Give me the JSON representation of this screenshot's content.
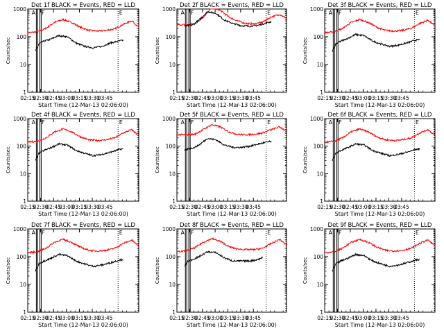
{
  "colors": {
    "background": "#ffffff",
    "axis": "#000000",
    "events": "#000000",
    "lld": "#ff0000"
  },
  "shared": {
    "xlabel": "Start Time (12-Mar-13 02:06:00)",
    "ylabel": "Counts/sec",
    "x_ticks": [
      "02:15",
      "02:30",
      "02:45",
      "03:00",
      "03:15",
      "03:30",
      "03:45"
    ],
    "y_ticks": [
      "1",
      "10",
      "100",
      "1000"
    ],
    "markers": [
      "A",
      "F",
      "E"
    ]
  },
  "chart_data": [
    {
      "type": "line",
      "title": "Det 1f BLACK = Events, RED = LLD",
      "xlabel": "Start Time (12-Mar-13 02:06:00)",
      "ylabel": "Counts/sec",
      "y_scale": "log",
      "ylim": [
        1,
        1000
      ],
      "xlim_minutes": [
        9,
        138
      ],
      "series": [
        {
          "name": "Events",
          "color": "#000000",
          "x": [
            18,
            22,
            28,
            35,
            45,
            55,
            65,
            75,
            85,
            95,
            105,
            115,
            120
          ],
          "y": [
            30,
            55,
            70,
            80,
            110,
            100,
            60,
            45,
            40,
            45,
            60,
            70,
            75
          ]
        },
        {
          "name": "LLD",
          "color": "#ff0000",
          "x": [
            9,
            20,
            30,
            40,
            50,
            60,
            70,
            80,
            90,
            100,
            110,
            120,
            130,
            138
          ],
          "y": [
            140,
            150,
            200,
            330,
            420,
            330,
            220,
            170,
            160,
            170,
            190,
            280,
            380,
            220
          ]
        }
      ]
    },
    {
      "type": "line",
      "title": "Det 2f BLACK = Events, RED = LLD",
      "xlabel": "Start Time (12-Mar-13 02:06:00)",
      "ylabel": "Counts/sec",
      "y_scale": "log",
      "ylim": [
        1,
        1000
      ],
      "xlim_minutes": [
        9,
        138
      ],
      "series": [
        {
          "name": "Events",
          "color": "#000000",
          "x": [
            18,
            22,
            28,
            35,
            45,
            55,
            65,
            75,
            85,
            95,
            105,
            115,
            120
          ],
          "y": [
            240,
            250,
            270,
            400,
            800,
            700,
            400,
            300,
            250,
            240,
            260,
            320,
            350
          ]
        },
        {
          "name": "LLD",
          "color": "#ff0000",
          "x": [
            9,
            20,
            30,
            40,
            50,
            60,
            70,
            80,
            90,
            100,
            110,
            120,
            130,
            138
          ],
          "y": [
            270,
            270,
            300,
            500,
            1100,
            900,
            520,
            380,
            300,
            290,
            340,
            520,
            640,
            460
          ]
        }
      ]
    },
    {
      "type": "line",
      "title": "Det 3f BLACK = Events, RED = LLD",
      "xlabel": "Start Time (12-Mar-13 02:06:00)",
      "ylabel": "Counts/sec",
      "y_scale": "log",
      "ylim": [
        1,
        1000
      ],
      "xlim_minutes": [
        9,
        138
      ],
      "series": [
        {
          "name": "Events",
          "color": "#000000",
          "x": [
            18,
            22,
            28,
            35,
            45,
            55,
            65,
            75,
            85,
            95,
            105,
            115,
            120
          ],
          "y": [
            30,
            55,
            70,
            85,
            120,
            110,
            70,
            55,
            45,
            50,
            60,
            75,
            80
          ]
        },
        {
          "name": "LLD",
          "color": "#ff0000",
          "x": [
            9,
            20,
            30,
            40,
            50,
            60,
            70,
            80,
            90,
            100,
            110,
            120,
            130,
            138
          ],
          "y": [
            140,
            150,
            200,
            330,
            420,
            330,
            220,
            170,
            160,
            170,
            200,
            300,
            400,
            240
          ]
        }
      ]
    },
    {
      "type": "line",
      "title": "Det 4f BLACK = Events, RED = LLD",
      "xlabel": "Start Time (12-Mar-13 02:06:00)",
      "ylabel": "Counts/sec",
      "y_scale": "log",
      "ylim": [
        1,
        1000
      ],
      "xlim_minutes": [
        9,
        138
      ],
      "series": [
        {
          "name": "Events",
          "color": "#000000",
          "x": [
            18,
            22,
            28,
            35,
            45,
            55,
            65,
            75,
            85,
            95,
            105,
            115,
            120
          ],
          "y": [
            30,
            55,
            70,
            85,
            120,
            110,
            70,
            55,
            45,
            50,
            60,
            75,
            80
          ]
        },
        {
          "name": "LLD",
          "color": "#ff0000",
          "x": [
            9,
            20,
            30,
            40,
            50,
            60,
            70,
            80,
            90,
            100,
            110,
            120,
            130,
            138
          ],
          "y": [
            140,
            150,
            200,
            330,
            420,
            330,
            220,
            170,
            160,
            170,
            200,
            300,
            400,
            240
          ]
        }
      ]
    },
    {
      "type": "line",
      "title": "Det 5f BLACK = Events, RED = LLD",
      "xlabel": "Start Time (12-Mar-13 02:06:00)",
      "ylabel": "Counts/sec",
      "y_scale": "log",
      "ylim": [
        1,
        1000
      ],
      "xlim_minutes": [
        9,
        138
      ],
      "series": [
        {
          "name": "Events",
          "color": "#000000",
          "x": [
            18,
            22,
            28,
            35,
            45,
            55,
            65,
            75,
            85,
            95,
            105,
            115,
            120
          ],
          "y": [
            70,
            80,
            85,
            110,
            190,
            170,
            110,
            90,
            90,
            100,
            120,
            140,
            150
          ]
        },
        {
          "name": "LLD",
          "color": "#ff0000",
          "x": [
            9,
            20,
            30,
            40,
            50,
            60,
            70,
            80,
            90,
            100,
            110,
            120,
            130,
            138
          ],
          "y": [
            260,
            260,
            270,
            400,
            600,
            500,
            330,
            270,
            260,
            270,
            300,
            400,
            500,
            350
          ]
        }
      ]
    },
    {
      "type": "line",
      "title": "Det 6f BLACK = Events, RED = LLD",
      "xlabel": "Start Time (12-Mar-13 02:06:00)",
      "ylabel": "Counts/sec",
      "y_scale": "log",
      "ylim": [
        1,
        1000
      ],
      "xlim_minutes": [
        9,
        138
      ],
      "series": [
        {
          "name": "Events",
          "color": "#000000",
          "x": [
            18,
            22,
            28,
            35,
            45,
            55,
            65,
            75,
            85,
            95,
            105,
            115,
            120
          ],
          "y": [
            30,
            55,
            70,
            85,
            120,
            110,
            70,
            55,
            45,
            50,
            60,
            75,
            80
          ]
        },
        {
          "name": "LLD",
          "color": "#ff0000",
          "x": [
            9,
            20,
            30,
            40,
            50,
            60,
            70,
            80,
            90,
            100,
            110,
            120,
            130,
            138
          ],
          "y": [
            140,
            150,
            200,
            330,
            420,
            330,
            220,
            170,
            160,
            170,
            200,
            300,
            400,
            240
          ]
        }
      ]
    },
    {
      "type": "line",
      "title": "Det 7f BLACK = Events, RED = LLD",
      "xlabel": "Start Time (12-Mar-13 02:06:00)",
      "ylabel": "Counts/sec",
      "y_scale": "log",
      "ylim": [
        1,
        1000
      ],
      "xlim_minutes": [
        9,
        138
      ],
      "series": [
        {
          "name": "Events",
          "color": "#000000",
          "x": [
            18,
            22,
            28,
            35,
            45,
            55,
            65,
            75,
            85,
            95,
            105,
            115,
            120
          ],
          "y": [
            30,
            55,
            70,
            85,
            120,
            110,
            70,
            55,
            45,
            50,
            60,
            75,
            80
          ]
        },
        {
          "name": "LLD",
          "color": "#ff0000",
          "x": [
            9,
            20,
            30,
            40,
            50,
            60,
            70,
            80,
            90,
            100,
            110,
            120,
            130,
            138
          ],
          "y": [
            140,
            150,
            200,
            330,
            420,
            330,
            220,
            170,
            160,
            170,
            200,
            300,
            400,
            240
          ]
        }
      ]
    },
    {
      "type": "line",
      "title": "Det 8f BLACK = Events, RED = LLD",
      "xlabel": "Start Time (12-Mar-13 02:06:00)",
      "ylabel": "Counts/sec",
      "y_scale": "log",
      "ylim": [
        1,
        1000
      ],
      "xlim_minutes": [
        9,
        138
      ],
      "series": [
        {
          "name": "Events",
          "color": "#000000",
          "x": [
            18,
            22,
            28,
            35,
            45,
            55,
            65,
            75,
            85,
            95,
            105,
            110
          ],
          "y": [
            45,
            70,
            80,
            100,
            150,
            140,
            90,
            70,
            70,
            70,
            80,
            95
          ]
        },
        {
          "name": "LLD",
          "color": "#ff0000",
          "x": [
            9,
            20,
            30,
            40,
            50,
            60,
            70,
            80,
            90,
            100,
            110,
            120,
            130,
            138
          ],
          "y": [
            150,
            160,
            210,
            330,
            450,
            360,
            230,
            190,
            180,
            180,
            200,
            300,
            420,
            260
          ]
        }
      ]
    },
    {
      "type": "line",
      "title": "Det 9f BLACK = Events, RED = LLD",
      "xlabel": "Start Time (12-Mar-13 02:06:00)",
      "ylabel": "Counts/sec",
      "y_scale": "log",
      "ylim": [
        1,
        1000
      ],
      "xlim_minutes": [
        9,
        138
      ],
      "series": [
        {
          "name": "Events",
          "color": "#000000",
          "x": [
            18,
            22,
            28,
            35,
            45,
            55,
            65,
            75,
            85,
            95,
            105,
            115,
            120
          ],
          "y": [
            30,
            55,
            70,
            85,
            120,
            110,
            70,
            55,
            45,
            50,
            60,
            75,
            80
          ]
        },
        {
          "name": "LLD",
          "color": "#ff0000",
          "x": [
            9,
            20,
            30,
            40,
            50,
            60,
            70,
            80,
            90,
            100,
            110,
            120,
            130,
            138
          ],
          "y": [
            140,
            150,
            200,
            330,
            420,
            330,
            220,
            170,
            160,
            170,
            200,
            300,
            400,
            240
          ]
        }
      ]
    }
  ]
}
